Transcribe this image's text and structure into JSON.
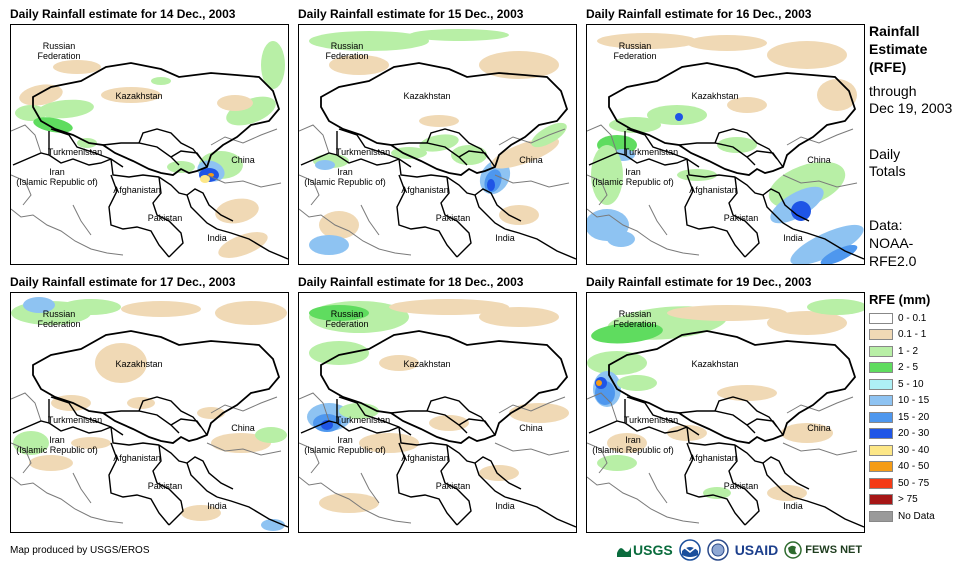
{
  "panels": [
    {
      "title": "Daily Rainfall estimate for 14 Dec., 2003"
    },
    {
      "title": "Daily Rainfall estimate for 15 Dec., 2003"
    },
    {
      "title": "Daily Rainfall estimate for 16 Dec., 2003"
    },
    {
      "title": "Daily Rainfall estimate for 17 Dec., 2003"
    },
    {
      "title": "Daily Rainfall estimate for 18 Dec., 2003"
    },
    {
      "title": "Daily Rainfall estimate for 19 Dec., 2003"
    }
  ],
  "map_labels": {
    "russia": "Russian\nFederation",
    "kazakhstan": "Kazakhstan",
    "turkmenistan": "Turkmenistan",
    "iran": "Iran\n(Islamic Republic of)",
    "afghanistan": "Afghanistan",
    "pakistan": "Pakistan",
    "india": "India",
    "china": "China"
  },
  "sidebar": {
    "heading_line1": "Rainfall",
    "heading_line2": "Estimate",
    "heading_line3": "(RFE)",
    "through": "through",
    "date": "Dec 19, 2003",
    "daily1": "Daily",
    "daily2": "Totals",
    "data1": "Data:",
    "data2": "NOAA-",
    "data3": "RFE2.0"
  },
  "legend": {
    "title": "RFE (mm)",
    "items": [
      {
        "label": "0 - 0.1",
        "color": "#ffffff"
      },
      {
        "label": "0.1 - 1",
        "color": "#f0d9b5"
      },
      {
        "label": "1 - 2",
        "color": "#b8efa6"
      },
      {
        "label": "2 - 5",
        "color": "#5fdc5f"
      },
      {
        "label": "5 - 10",
        "color": "#aef0f5"
      },
      {
        "label": "10 - 15",
        "color": "#8ec3f2"
      },
      {
        "label": "15 - 20",
        "color": "#4e97ee"
      },
      {
        "label": "20 - 30",
        "color": "#1f55e6"
      },
      {
        "label": "30 - 40",
        "color": "#fde787"
      },
      {
        "label": "40 - 50",
        "color": "#f59c16"
      },
      {
        "label": "50 - 75",
        "color": "#f43a16"
      },
      {
        "label": "> 75",
        "color": "#a61616"
      },
      {
        "label": "No Data",
        "color": "#9a9a9a"
      }
    ]
  },
  "footer": {
    "credit": "Map produced by USGS/EROS"
  },
  "logos": {
    "usgs": "USGS",
    "usaid": "USAID",
    "fewsnet": "FEWS NET"
  }
}
